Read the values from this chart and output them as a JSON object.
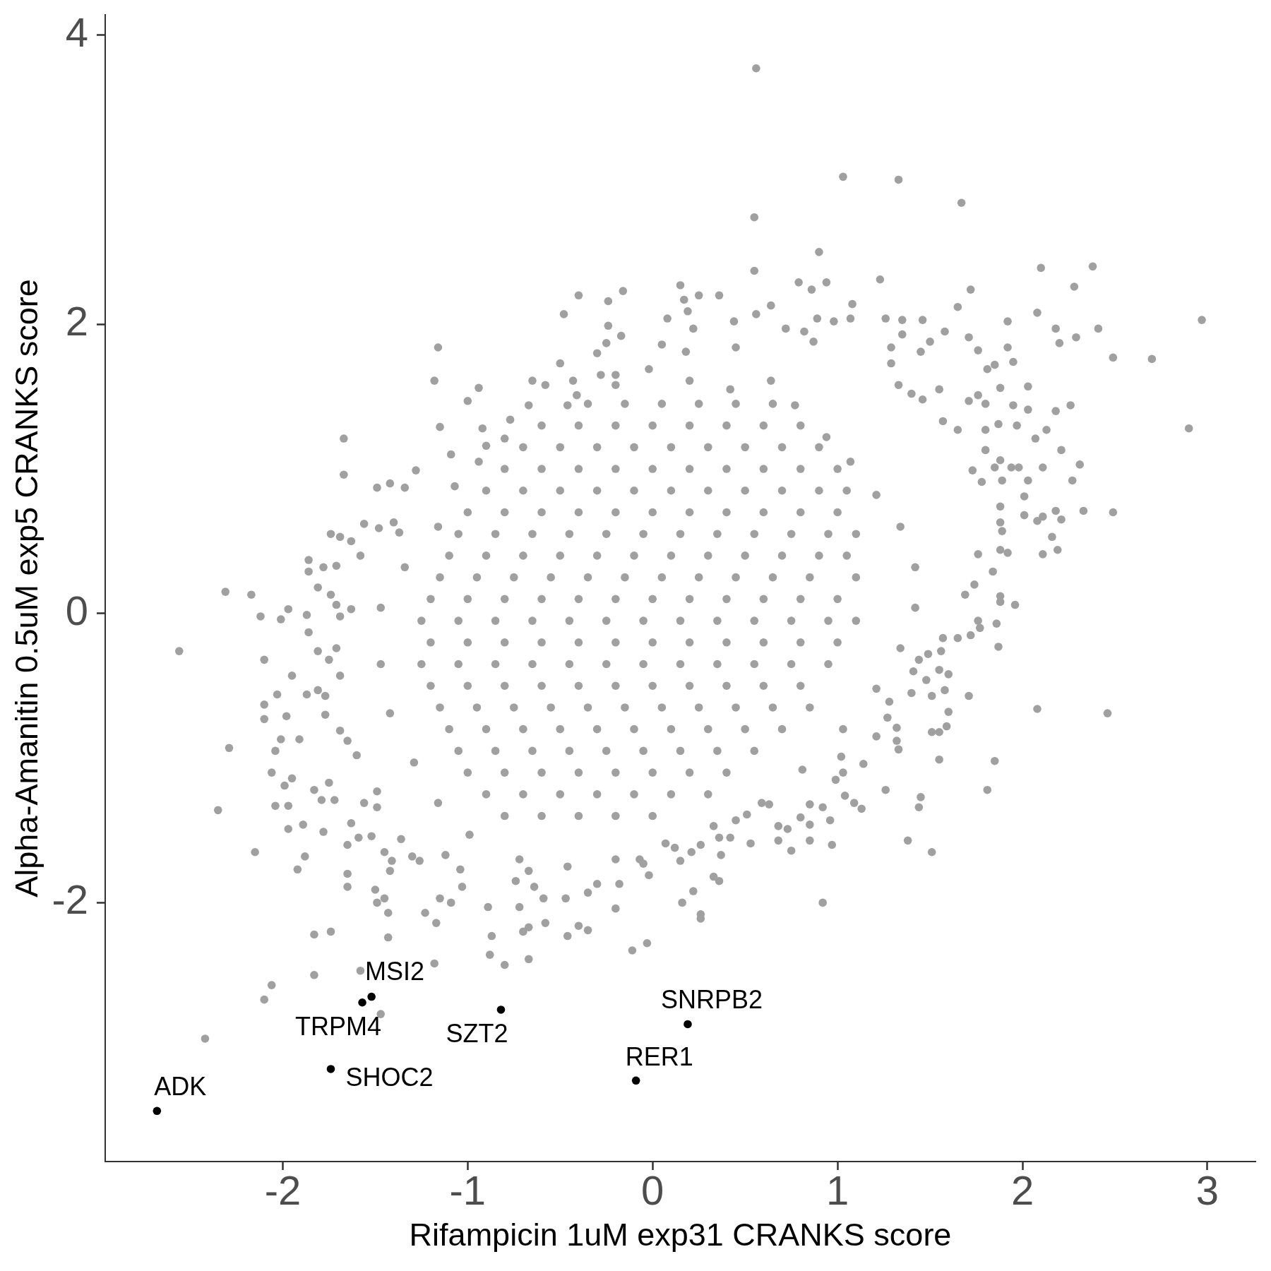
{
  "chart_data": {
    "type": "scatter",
    "xlabel": "Rifampicin 1uM exp31 CRANKS score",
    "ylabel": "Alpha-Amanitin 0.5uM exp5 CRANKS score",
    "xlim": [
      -2.96,
      3.26
    ],
    "ylim": [
      -3.79,
      4.14
    ],
    "xticks": [
      -2,
      -1,
      0,
      1,
      2,
      3
    ],
    "yticks": [
      -2,
      0,
      2,
      4
    ],
    "marker": "circle",
    "series": [
      {
        "color": "#a0a0a0",
        "x": [
          -1.16,
          -1.18,
          -0.94,
          -1.0,
          -1.15,
          -1.67,
          -1.67,
          -0.4,
          -0.16,
          -0.24,
          -0.48,
          -0.24,
          -0.17,
          -0.25,
          -0.3,
          -0.5,
          -0.65,
          -0.58,
          -0.43,
          -0.41,
          -0.67,
          -0.77,
          -0.92,
          -0.8,
          -1.09,
          -1.28,
          -1.42,
          -1.49,
          -1.34,
          -0.94,
          -0.28,
          -0.2,
          0.56,
          1.03,
          1.33,
          1.67,
          0.55,
          0.9,
          0.55,
          2.1,
          2.38,
          2.28,
          1.72,
          1.23,
          0.79,
          0.86,
          0.94,
          0.15,
          0.25,
          0.36,
          0.17,
          0.19,
          1.65,
          2.08,
          2.97,
          1.92,
          2.18,
          2.41,
          2.29,
          2.2,
          2.49,
          2.7,
          2.9,
          1.95,
          1.92,
          2.03,
          2.26,
          2.18,
          2.13,
          2.31,
          2.27,
          2.21,
          2.11,
          2.03,
          1.95,
          2.03,
          1.97,
          2.07,
          1.58,
          1.46,
          1.71,
          1.76,
          1.85,
          1.81,
          1.88,
          1.76,
          1.8,
          1.71,
          1.87,
          1.8,
          1.8,
          1.88,
          1.85,
          1.94,
          1.98,
          1.89,
          1.78,
          1.73,
          1.65,
          1.57,
          1.5,
          1.45,
          1.29,
          1.26,
          1.35,
          1.08,
          1.07,
          0.89,
          0.98,
          0.64,
          0.56,
          0.44,
          0.08,
          0.22,
          0.05,
          0.18,
          0.72,
          0.82,
          0.87,
          0.45,
          1.35,
          1.4,
          1.46,
          1.55,
          1.33,
          1.29,
          -2.56,
          -2.31,
          -2.17,
          -2.12,
          -1.97,
          -2.01,
          -2.1,
          -2.29,
          -2.35,
          -2.15,
          -1.95,
          -2.1,
          -2.1,
          -2.04,
          -2.06,
          -2.01,
          -1.91,
          -1.98,
          -2.03,
          -1.99,
          -1.95,
          -2.04,
          -1.97,
          -1.97,
          -1.89,
          -1.88,
          -1.92,
          -1.87,
          -1.86,
          -1.87,
          -1.81,
          -1.86,
          -1.86,
          -1.74,
          -1.69,
          -1.63,
          -1.56,
          -1.48,
          -1.4,
          -1.37,
          -1.78,
          -1.71,
          -1.58,
          -1.74,
          -1.71,
          -1.69,
          -1.63,
          -1.81,
          -1.75,
          -1.69,
          -1.71,
          -1.81,
          -1.77,
          -1.77,
          -1.69,
          -1.65,
          -1.6,
          -1.83,
          -1.79,
          -1.72,
          -1.75,
          -1.78,
          -1.63,
          -1.65,
          -1.65,
          -1.65,
          -1.59,
          -1.52,
          -1.45,
          -1.41,
          -1.42,
          -1.5,
          -1.45,
          -1.49,
          -1.43,
          -1.23,
          -1.15,
          -1.09,
          -1.03,
          -1.04,
          -1.12,
          -1.3,
          -1.26,
          -1.36,
          -1.49,
          -1.49,
          -1.56,
          -0.89,
          -0.72,
          -0.74,
          -0.64,
          -0.59,
          -0.47,
          -0.3,
          -0.2,
          -0.18,
          -0.35,
          -0.67,
          2.49,
          2.33,
          2.18,
          2.21,
          2.11,
          2.08,
          2.01,
          2.16,
          2.19,
          2.11,
          1.92,
          1.88,
          1.76,
          1.84,
          1.88,
          1.88,
          1.96,
          1.86,
          1.87,
          1.76,
          1.77,
          1.72,
          1.65,
          1.69,
          1.74,
          2.01,
          1.88,
          1.88,
          1.89,
          2.08,
          2.46,
          1.71,
          1.6,
          1.59,
          1.51,
          1.55,
          1.58,
          1.51,
          1.48,
          1.4,
          1.6,
          1.55,
          1.56,
          1.57,
          1.49,
          1.44,
          1.41,
          1.55,
          1.85,
          1.81,
          1.45,
          1.44,
          1.26,
          1.38,
          1.51,
          1.32,
          1.32,
          1.33,
          1.21,
          1.27,
          1.28,
          1.14,
          1.02,
          1.03,
          0.99,
          1.04,
          1.09,
          1.13,
          0.96,
          0.92,
          0.85,
          0.85,
          0.97,
          0.85,
          0.75,
          0.68,
          0.53,
          0.92,
          0.8,
          0.73,
          0.68,
          0.63,
          0.51,
          0.45,
          0.42,
          0.36,
          0.37,
          0.33,
          0.36,
          0.22,
          0.16,
          0.26,
          0.15,
          -0.02,
          0.21,
          0.26,
          0.12,
          -0.07,
          -0.05,
          -2.42,
          -2.1,
          -2.06,
          -1.83,
          -1.58,
          -1.47,
          -1.83,
          -1.74,
          -1.43,
          -1.18,
          -1.17,
          -0.87,
          -0.88,
          -0.8,
          -0.67,
          -0.7,
          -0.67,
          -0.58,
          -0.46,
          -0.4,
          -0.35,
          -0.11,
          -0.03,
          0.26,
          -0.02,
          0.2,
          0.42,
          0.64,
          0.77,
          -0.46,
          -0.2,
          0.94,
          1.07,
          1.21,
          1.34,
          1.42,
          -0.9,
          -1.07,
          -1.16,
          -1.34,
          -1.47,
          -1.47,
          -1.42,
          -1.29,
          -1.16,
          -0.99,
          -0.72,
          -0.46,
          -0.2,
          0.07,
          0.33,
          0.59,
          0.81,
          1.03,
          1.21,
          1.34,
          1.42,
          -0.35,
          -0.15,
          0.05,
          0.25,
          0.45,
          0.65,
          -0.6,
          -0.4,
          -0.2,
          0,
          0.2,
          0.4,
          0.6,
          0.8,
          -0.7,
          -0.5,
          -0.3,
          -0.1,
          0.1,
          0.3,
          0.5,
          0.7,
          0.9,
          -0.8,
          -0.6,
          -0.4,
          -0.2,
          0,
          0.2,
          0.4,
          0.6,
          0.8,
          1.0,
          -0.9,
          -0.7,
          -0.5,
          -0.3,
          -0.1,
          0.1,
          0.3,
          0.5,
          0.7,
          0.9,
          1.05,
          -1.0,
          -0.8,
          -0.6,
          -0.4,
          -0.2,
          0,
          0.2,
          0.4,
          0.6,
          0.8,
          1.0,
          -1.05,
          -0.85,
          -0.65,
          -0.45,
          -0.25,
          -0.05,
          0.15,
          0.35,
          0.55,
          0.75,
          0.95,
          1.1,
          -1.1,
          -0.9,
          -0.7,
          -0.5,
          -0.3,
          -0.1,
          0.1,
          0.3,
          0.5,
          0.7,
          0.9,
          1.05,
          -1.15,
          -0.95,
          -0.75,
          -0.55,
          -0.35,
          -0.15,
          0.05,
          0.25,
          0.45,
          0.65,
          0.85,
          1.1,
          -1.2,
          -1.0,
          -0.8,
          -0.6,
          -0.4,
          -0.2,
          0,
          0.2,
          0.4,
          0.6,
          0.8,
          1.0,
          -1.25,
          -1.05,
          -0.85,
          -0.65,
          -0.45,
          -0.25,
          -0.05,
          0.15,
          0.35,
          0.55,
          0.75,
          0.95,
          1.1,
          -1.2,
          -1.0,
          -0.8,
          -0.6,
          -0.4,
          -0.2,
          0,
          0.2,
          0.4,
          0.6,
          0.8,
          1.0,
          -1.25,
          -1.05,
          -0.85,
          -0.65,
          -0.45,
          -0.25,
          -0.05,
          0.15,
          0.35,
          0.55,
          0.75,
          0.95,
          -1.2,
          -1.0,
          -0.8,
          -0.6,
          -0.4,
          -0.2,
          0,
          0.2,
          0.4,
          0.6,
          0.8,
          -1.15,
          -0.95,
          -0.75,
          -0.55,
          -0.35,
          -0.15,
          0.05,
          0.25,
          0.45,
          0.65,
          0.85,
          -1.1,
          -0.9,
          -0.7,
          -0.5,
          -0.3,
          -0.1,
          0.1,
          0.3,
          0.5,
          0.7,
          -1.05,
          -0.85,
          -0.65,
          -0.45,
          -0.25,
          -0.05,
          0.15,
          0.35,
          0.55,
          -1.0,
          -0.8,
          -0.6,
          -0.4,
          -0.2,
          0,
          0.2,
          0.4,
          -0.9,
          -0.7,
          -0.5,
          -0.3,
          -0.1,
          0.1,
          0.3,
          -0.8,
          -0.6,
          -0.4,
          -0.2,
          0
        ],
        "values": [
          1.84,
          1.61,
          1.56,
          1.47,
          1.29,
          1.21,
          0.96,
          2.2,
          2.23,
          2.16,
          2.07,
          1.99,
          1.92,
          1.87,
          1.8,
          1.73,
          1.61,
          1.58,
          1.61,
          1.51,
          1.44,
          1.34,
          1.28,
          1.21,
          1.1,
          0.99,
          0.9,
          0.87,
          0.87,
          1.05,
          1.65,
          1.65,
          3.77,
          3.02,
          3.0,
          2.84,
          2.74,
          2.5,
          2.37,
          2.39,
          2.4,
          2.26,
          2.24,
          2.31,
          2.29,
          2.24,
          2.29,
          2.27,
          2.2,
          2.2,
          2.17,
          2.09,
          2.12,
          2.08,
          2.03,
          2.02,
          1.97,
          1.97,
          1.91,
          1.87,
          1.77,
          1.76,
          1.28,
          1.74,
          1.84,
          1.57,
          1.44,
          1.4,
          1.27,
          1.03,
          0.92,
          1.13,
          1.01,
          0.92,
          1.44,
          1.41,
          1.3,
          1.21,
          1.95,
          2.03,
          1.91,
          1.82,
          1.72,
          1.69,
          1.56,
          1.51,
          1.45,
          1.47,
          1.31,
          1.27,
          1.13,
          1.06,
          1.01,
          1.01,
          1.01,
          0.92,
          0.91,
          0.99,
          1.27,
          1.33,
          1.88,
          1.81,
          1.84,
          2.04,
          2.03,
          2.14,
          2.04,
          2.04,
          2.02,
          2.13,
          2.07,
          2.02,
          2.04,
          1.97,
          1.86,
          1.81,
          1.97,
          1.95,
          1.88,
          1.84,
          1.93,
          1.52,
          1.48,
          1.55,
          1.58,
          1.73,
          -0.26,
          0.15,
          0.13,
          -0.02,
          0.03,
          -0.04,
          -0.32,
          -0.93,
          -1.36,
          -1.65,
          -0.43,
          -0.63,
          -0.73,
          -0.95,
          -1.1,
          -0.87,
          -0.87,
          -0.71,
          -0.56,
          -1.19,
          -1.14,
          -1.33,
          -1.33,
          -1.49,
          -1.46,
          -1.68,
          -1.77,
          -0.56,
          -0.13,
          -0.01,
          0.18,
          0.37,
          0.29,
          0.55,
          0.53,
          0.5,
          0.62,
          0.59,
          0.63,
          0.56,
          0.32,
          0.33,
          0.4,
          0.13,
          0.06,
          -0.02,
          0.03,
          -0.26,
          -0.32,
          -0.43,
          -0.24,
          -0.53,
          -0.57,
          -0.7,
          -0.81,
          -0.88,
          -0.98,
          -1.22,
          -1.29,
          -1.29,
          -1.17,
          -1.51,
          -1.45,
          -1.6,
          -1.8,
          -1.89,
          -1.55,
          -1.54,
          -1.65,
          -1.71,
          -1.78,
          -1.91,
          -1.97,
          -2.0,
          -2.07,
          -2.07,
          -1.97,
          -2.0,
          -1.89,
          -1.77,
          -1.67,
          -1.68,
          -1.71,
          -1.56,
          -1.34,
          -1.23,
          -1.31,
          -2.03,
          -2.03,
          -1.85,
          -1.89,
          -1.97,
          -1.97,
          -1.87,
          -2.04,
          -1.87,
          -1.93,
          -1.78,
          0.7,
          0.71,
          0.71,
          0.65,
          0.67,
          0.64,
          0.68,
          0.53,
          0.44,
          0.41,
          0.42,
          0.44,
          0.41,
          0.29,
          0.12,
          0.08,
          0.06,
          -0.07,
          -0.23,
          -0.05,
          -0.1,
          -0.15,
          -0.17,
          0.13,
          0.2,
          0.81,
          0.74,
          0.63,
          0.57,
          -0.66,
          -0.69,
          -0.57,
          -0.68,
          -0.78,
          -0.82,
          -0.82,
          -0.53,
          -0.57,
          -0.46,
          -0.55,
          -0.42,
          -0.39,
          -0.26,
          -0.17,
          -0.28,
          -0.32,
          -0.4,
          -1.01,
          -1.02,
          -1.22,
          -1.27,
          -1.34,
          -1.22,
          -1.57,
          -1.65,
          -0.79,
          -0.88,
          -0.94,
          -0.85,
          -0.72,
          -0.61,
          -1.04,
          -0.99,
          -1.1,
          -1.15,
          -1.26,
          -1.31,
          -1.35,
          -1.43,
          -1.34,
          -1.32,
          -1.46,
          -1.6,
          -1.57,
          -1.64,
          -1.57,
          -1.59,
          -2.0,
          -1.41,
          -1.49,
          -1.47,
          -1.32,
          -1.39,
          -1.43,
          -1.55,
          -1.55,
          -1.67,
          -1.82,
          -1.85,
          -1.92,
          -2.0,
          -2.08,
          -1.71,
          -1.81,
          -1.65,
          -1.6,
          -1.62,
          -1.7,
          -1.73,
          -2.94,
          -2.67,
          -2.57,
          -2.5,
          -2.47,
          -2.77,
          -2.22,
          -2.2,
          -2.24,
          -2.42,
          -2.14,
          -2.23,
          -2.36,
          -2.43,
          -2.39,
          -2.2,
          -2.17,
          -2.14,
          -2.23,
          -2.16,
          -2.19,
          -2.33,
          -2.28,
          -2.11,
          1.69,
          1.61,
          1.55,
          1.61,
          1.44,
          1.44,
          1.58,
          1.22,
          1.05,
          0.82,
          0.6,
          0.32,
          1.16,
          0.88,
          0.6,
          0.32,
          0.04,
          -0.35,
          -0.69,
          -1.03,
          -1.31,
          -1.53,
          -1.7,
          -1.75,
          -1.7,
          -1.59,
          -1.47,
          -1.31,
          -1.08,
          -0.8,
          -0.52,
          -0.24,
          0.04,
          1.45,
          1.45,
          1.45,
          1.45,
          1.45,
          1.45,
          1.3,
          1.3,
          1.3,
          1.3,
          1.3,
          1.3,
          1.3,
          1.3,
          1.15,
          1.15,
          1.15,
          1.15,
          1.15,
          1.15,
          1.15,
          1.15,
          1.15,
          1.0,
          1.0,
          1.0,
          1.0,
          1.0,
          1.0,
          1.0,
          1.0,
          1.0,
          1.0,
          0.85,
          0.85,
          0.85,
          0.85,
          0.85,
          0.85,
          0.85,
          0.85,
          0.85,
          0.85,
          0.85,
          0.7,
          0.7,
          0.7,
          0.7,
          0.7,
          0.7,
          0.7,
          0.7,
          0.7,
          0.7,
          0.7,
          0.55,
          0.55,
          0.55,
          0.55,
          0.55,
          0.55,
          0.55,
          0.55,
          0.55,
          0.55,
          0.55,
          0.55,
          0.4,
          0.4,
          0.4,
          0.4,
          0.4,
          0.4,
          0.4,
          0.4,
          0.4,
          0.4,
          0.4,
          0.4,
          0.25,
          0.25,
          0.25,
          0.25,
          0.25,
          0.25,
          0.25,
          0.25,
          0.25,
          0.25,
          0.25,
          0.25,
          0.1,
          0.1,
          0.1,
          0.1,
          0.1,
          0.1,
          0.1,
          0.1,
          0.1,
          0.1,
          0.1,
          0.1,
          -0.05,
          -0.05,
          -0.05,
          -0.05,
          -0.05,
          -0.05,
          -0.05,
          -0.05,
          -0.05,
          -0.05,
          -0.05,
          -0.05,
          -0.05,
          -0.2,
          -0.2,
          -0.2,
          -0.2,
          -0.2,
          -0.2,
          -0.2,
          -0.2,
          -0.2,
          -0.2,
          -0.2,
          -0.2,
          -0.35,
          -0.35,
          -0.35,
          -0.35,
          -0.35,
          -0.35,
          -0.35,
          -0.35,
          -0.35,
          -0.35,
          -0.35,
          -0.35,
          -0.5,
          -0.5,
          -0.5,
          -0.5,
          -0.5,
          -0.5,
          -0.5,
          -0.5,
          -0.5,
          -0.5,
          -0.5,
          -0.65,
          -0.65,
          -0.65,
          -0.65,
          -0.65,
          -0.65,
          -0.65,
          -0.65,
          -0.65,
          -0.65,
          -0.65,
          -0.8,
          -0.8,
          -0.8,
          -0.8,
          -0.8,
          -0.8,
          -0.8,
          -0.8,
          -0.8,
          -0.8,
          -0.95,
          -0.95,
          -0.95,
          -0.95,
          -0.95,
          -0.95,
          -0.95,
          -0.95,
          -0.95,
          -1.1,
          -1.1,
          -1.1,
          -1.1,
          -1.1,
          -1.1,
          -1.1,
          -1.1,
          -1.25,
          -1.25,
          -1.25,
          -1.25,
          -1.25,
          -1.25,
          -1.25,
          -1.4,
          -1.4,
          -1.4,
          -1.4,
          -1.4
        ]
      },
      {
        "color": "#000000",
        "x": [
          -2.68,
          -1.74,
          -1.57,
          -1.52,
          -0.82,
          -0.09,
          0.19
        ],
        "values": [
          -3.44,
          -3.15,
          -2.69,
          -2.65,
          -2.74,
          -3.23,
          -2.84
        ]
      }
    ],
    "annotations": [
      {
        "text": "ADK",
        "x": -2.68,
        "y": -3.44
      },
      {
        "text": "SHOC2",
        "x": -1.74,
        "y": -3.15
      },
      {
        "text": "TRPM4",
        "x": -1.57,
        "y": -2.69
      },
      {
        "text": "MSI2",
        "x": -1.52,
        "y": -2.65
      },
      {
        "text": "SZT2",
        "x": -0.82,
        "y": -2.74
      },
      {
        "text": "RER1",
        "x": -0.09,
        "y": -3.23
      },
      {
        "text": "SNRPB2",
        "x": 0.19,
        "y": -2.84
      }
    ]
  }
}
